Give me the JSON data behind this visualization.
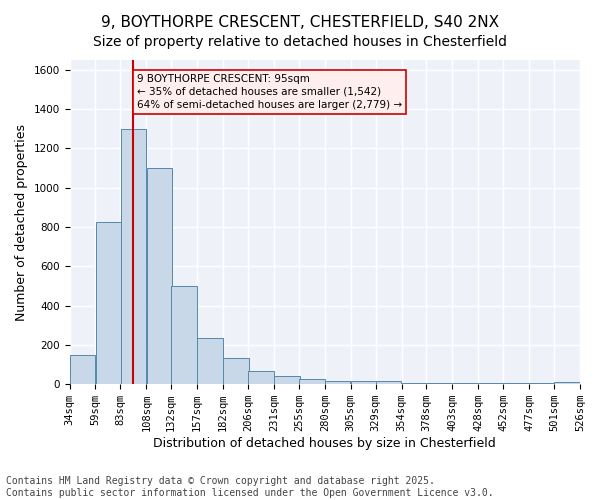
{
  "title_line1": "9, BOYTHORPE CRESCENT, CHESTERFIELD, S40 2NX",
  "title_line2": "Size of property relative to detached houses in Chesterfield",
  "xlabel": "Distribution of detached houses by size in Chesterfield",
  "ylabel": "Number of detached properties",
  "bar_color": "#c8d8e8",
  "bar_edge_color": "#5588aa",
  "bg_color": "#eef2f8",
  "grid_color": "#ffffff",
  "annotation_text": "9 BOYTHORPE CRESCENT: 95sqm\n← 35% of detached houses are smaller (1,542)\n64% of semi-detached houses are larger (2,779) →",
  "vline_x": 95,
  "vline_color": "#cc0000",
  "annotation_box_color": "#ffeeee",
  "annotation_box_edge": "#cc0000",
  "bins": [
    34,
    59,
    83,
    108,
    132,
    157,
    182,
    206,
    231,
    255,
    280,
    305,
    329,
    354,
    378,
    403,
    428,
    452,
    477,
    501,
    526
  ],
  "bar_labels": [
    "34sqm",
    "59sqm",
    "83sqm",
    "108sqm",
    "132sqm",
    "157sqm",
    "182sqm",
    "206sqm",
    "231sqm",
    "255sqm",
    "280sqm",
    "305sqm",
    "329sqm",
    "354sqm",
    "378sqm",
    "403sqm",
    "428sqm",
    "452sqm",
    "477sqm",
    "501sqm",
    "526sqm"
  ],
  "bar_heights": [
    150,
    825,
    1300,
    1100,
    500,
    235,
    135,
    65,
    40,
    25,
    15,
    15,
    15,
    8,
    8,
    5,
    5,
    5,
    5,
    10
  ],
  "ylim": [
    0,
    1650
  ],
  "yticks": [
    0,
    200,
    400,
    600,
    800,
    1000,
    1200,
    1400,
    1600
  ],
  "footer_text": "Contains HM Land Registry data © Crown copyright and database right 2025.\nContains public sector information licensed under the Open Government Licence v3.0.",
  "title_fontsize": 11,
  "subtitle_fontsize": 10,
  "axis_label_fontsize": 9,
  "tick_fontsize": 7.5,
  "footer_fontsize": 7
}
